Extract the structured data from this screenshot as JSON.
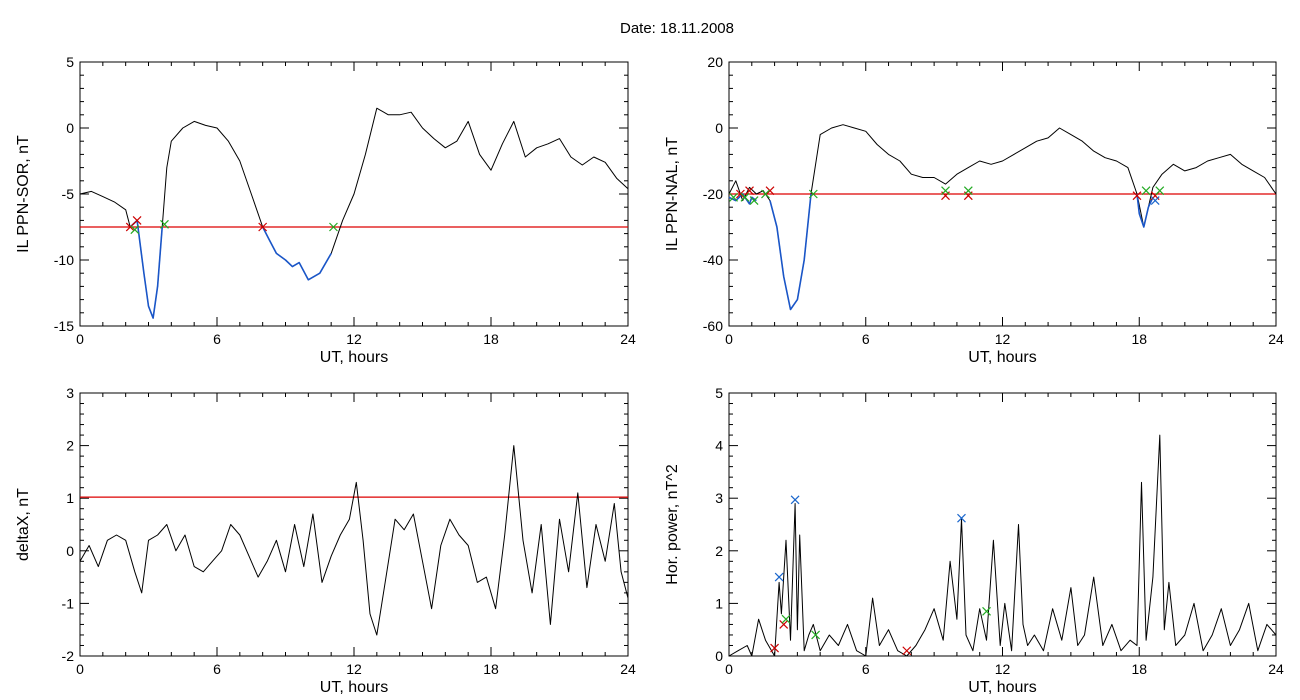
{
  "title": "Date:  18.11.2008",
  "colors": {
    "axis": "#000000",
    "signal": "#000000",
    "event": "#1a56c8",
    "threshold": "#dd0000",
    "marker_red": "#cc0000",
    "marker_green": "#22aa22",
    "marker_blue": "#1a66cc"
  },
  "chart_data": [
    {
      "type": "line",
      "xlabel": "UT, hours",
      "ylabel": "IL PPN-SOR, nT",
      "xlim": [
        0,
        24
      ],
      "ylim": [
        -15,
        5
      ],
      "xticks": [
        0,
        6,
        12,
        18,
        24
      ],
      "yticks": [
        5,
        0,
        -5,
        -10,
        -15
      ],
      "threshold": -7.5,
      "series": [
        {
          "role": "signal",
          "x": [
            0,
            0.5,
            1,
            1.5,
            2,
            2.2,
            2.5,
            2.8,
            3.0,
            3.2,
            3.4,
            3.6,
            3.8,
            4.0,
            4.5,
            5.0,
            5.5,
            6.0,
            6.5,
            7.0,
            7.5,
            8.0,
            8.3,
            8.6,
            9.0,
            9.3,
            9.6,
            10.0,
            10.5,
            11.0,
            11.5,
            12.0,
            12.5,
            13.0,
            13.5,
            14.0,
            14.5,
            15.0,
            15.5,
            16.0,
            16.5,
            17.0,
            17.5,
            18.0,
            18.5,
            19.0,
            19.5,
            20.0,
            20.5,
            21.0,
            21.5,
            22.0,
            22.5,
            23.0,
            23.5,
            24.0
          ],
          "y": [
            -5,
            -4.8,
            -5.2,
            -5.6,
            -6.2,
            -7.5,
            -7.0,
            -11,
            -13.5,
            -14.4,
            -12,
            -7.5,
            -3,
            -1,
            0,
            0.5,
            0.2,
            0,
            -1,
            -2.5,
            -5,
            -7.5,
            -8.5,
            -9.5,
            -10,
            -10.5,
            -10.2,
            -11.5,
            -11,
            -9.5,
            -7,
            -5,
            -2,
            1.5,
            1,
            1,
            1.2,
            0,
            -0.8,
            -1.5,
            -1,
            0.5,
            -2,
            -3.2,
            -1.2,
            0.5,
            -2.2,
            -1.5,
            -1.2,
            -0.8,
            -2.2,
            -2.8,
            -2.2,
            -2.6,
            -3.8,
            -4.6
          ]
        },
        {
          "role": "event",
          "x": [
            2.2,
            2.5,
            2.8,
            3.0,
            3.2,
            3.4,
            3.6
          ],
          "y": [
            -7.5,
            -7.0,
            -11,
            -13.5,
            -14.4,
            -12,
            -7.5
          ]
        },
        {
          "role": "event",
          "x": [
            8.0,
            8.3,
            8.6,
            9.0,
            9.3,
            9.6,
            10.0,
            10.5,
            11.0
          ],
          "y": [
            -7.5,
            -8.5,
            -9.5,
            -10,
            -10.5,
            -10.2,
            -11.5,
            -11,
            -9.5
          ]
        }
      ],
      "markers": [
        {
          "color": "red",
          "x": 2.2,
          "y": -7.5
        },
        {
          "color": "red",
          "x": 2.5,
          "y": -7.0
        },
        {
          "color": "red",
          "x": 8.0,
          "y": -7.5
        },
        {
          "color": "green",
          "x": 2.4,
          "y": -7.7
        },
        {
          "color": "green",
          "x": 3.7,
          "y": -7.3
        },
        {
          "color": "green",
          "x": 11.1,
          "y": -7.5
        }
      ]
    },
    {
      "type": "line",
      "xlabel": "UT, hours",
      "ylabel": "IL PPN-NAL, nT",
      "xlim": [
        0,
        24
      ],
      "ylim": [
        -60,
        20
      ],
      "xticks": [
        0,
        6,
        12,
        18,
        24
      ],
      "yticks": [
        20,
        0,
        -20,
        -40,
        -60
      ],
      "threshold": -20,
      "series": [
        {
          "role": "signal",
          "x": [
            0,
            0.3,
            0.6,
            0.9,
            1.2,
            1.5,
            1.8,
            2.1,
            2.4,
            2.7,
            3.0,
            3.3,
            3.6,
            4.0,
            4.5,
            5.0,
            5.5,
            6.0,
            6.5,
            7.0,
            7.5,
            8.0,
            8.5,
            9.0,
            9.5,
            10.0,
            10.5,
            11.0,
            11.5,
            12.0,
            12.5,
            13.0,
            13.5,
            14.0,
            14.5,
            15.0,
            15.5,
            16.0,
            16.5,
            17.0,
            17.5,
            17.9,
            18.2,
            18.6,
            19.0,
            19.5,
            20.0,
            20.5,
            21.0,
            21.5,
            22.0,
            22.5,
            23.0,
            23.5,
            24.0
          ],
          "y": [
            -20,
            -16,
            -22,
            -18,
            -20,
            -19,
            -22,
            -30,
            -45,
            -55,
            -52,
            -40,
            -20,
            -2,
            0,
            1,
            0,
            -1,
            -5,
            -8,
            -10,
            -14,
            -15,
            -15,
            -17,
            -14,
            -12,
            -10,
            -11,
            -10,
            -8,
            -6,
            -4,
            -3,
            0,
            -2,
            -4,
            -7,
            -9,
            -10,
            -12,
            -20,
            -30,
            -18,
            -14,
            -11,
            -13,
            -12,
            -10,
            -9,
            -8,
            -11,
            -13,
            -15,
            -20
          ]
        },
        {
          "role": "event",
          "x": [
            0.0,
            0.3,
            0.6,
            0.9,
            1.0,
            1.2
          ],
          "y": [
            -21,
            -22,
            -20,
            -23,
            -21,
            -22
          ]
        },
        {
          "role": "event",
          "x": [
            1.8,
            2.1,
            2.4,
            2.7,
            3.0,
            3.3,
            3.6
          ],
          "y": [
            -22,
            -30,
            -45,
            -55,
            -52,
            -40,
            -20
          ]
        },
        {
          "role": "event",
          "x": [
            17.9,
            18.0,
            18.2,
            18.4,
            18.6
          ],
          "y": [
            -20,
            -26,
            -30,
            -24,
            -21
          ]
        }
      ],
      "markers": [
        {
          "color": "red",
          "x": 0.5,
          "y": -20
        },
        {
          "color": "red",
          "x": 0.9,
          "y": -19
        },
        {
          "color": "red",
          "x": 1.8,
          "y": -19
        },
        {
          "color": "red",
          "x": 9.5,
          "y": -20.5
        },
        {
          "color": "red",
          "x": 10.5,
          "y": -20.5
        },
        {
          "color": "red",
          "x": 17.9,
          "y": -20.5
        },
        {
          "color": "red",
          "x": 18.7,
          "y": -20.5
        },
        {
          "color": "green",
          "x": 0.2,
          "y": -21
        },
        {
          "color": "green",
          "x": 0.7,
          "y": -21
        },
        {
          "color": "green",
          "x": 1.1,
          "y": -22
        },
        {
          "color": "green",
          "x": 1.6,
          "y": -20
        },
        {
          "color": "green",
          "x": 3.7,
          "y": -20
        },
        {
          "color": "green",
          "x": 9.5,
          "y": -19
        },
        {
          "color": "green",
          "x": 10.5,
          "y": -19
        },
        {
          "color": "green",
          "x": 18.3,
          "y": -19
        },
        {
          "color": "green",
          "x": 18.9,
          "y": -19
        },
        {
          "color": "blue",
          "x": 18.7,
          "y": -22
        }
      ]
    },
    {
      "type": "line",
      "xlabel": "UT, hours",
      "ylabel": "deltaX, nT",
      "xlim": [
        0,
        24
      ],
      "ylim": [
        -2,
        3
      ],
      "xticks": [
        0,
        6,
        12,
        18,
        24
      ],
      "yticks": [
        3,
        2,
        1,
        0,
        -1,
        -2
      ],
      "threshold": 1.02,
      "series": [
        {
          "role": "signal",
          "x": [
            0,
            0.4,
            0.8,
            1.2,
            1.6,
            2.0,
            2.4,
            2.7,
            3.0,
            3.4,
            3.8,
            4.2,
            4.6,
            5.0,
            5.4,
            5.8,
            6.2,
            6.6,
            7.0,
            7.4,
            7.8,
            8.2,
            8.6,
            9.0,
            9.4,
            9.8,
            10.2,
            10.6,
            11.0,
            11.4,
            11.8,
            12.1,
            12.4,
            12.7,
            13.0,
            13.4,
            13.8,
            14.2,
            14.6,
            15.0,
            15.4,
            15.8,
            16.2,
            16.6,
            17.0,
            17.4,
            17.8,
            18.2,
            18.6,
            19.0,
            19.4,
            19.8,
            20.2,
            20.6,
            21.0,
            21.4,
            21.8,
            22.2,
            22.6,
            23.0,
            23.4,
            23.7,
            24.0
          ],
          "y": [
            -0.2,
            0.1,
            -0.3,
            0.2,
            0.3,
            0.2,
            -0.4,
            -0.8,
            0.2,
            0.3,
            0.5,
            0.0,
            0.3,
            -0.3,
            -0.4,
            -0.2,
            0.0,
            0.5,
            0.3,
            -0.1,
            -0.5,
            -0.2,
            0.2,
            -0.4,
            0.5,
            -0.3,
            0.7,
            -0.6,
            -0.1,
            0.3,
            0.6,
            1.3,
            0.2,
            -1.2,
            -1.6,
            -0.5,
            0.6,
            0.4,
            0.7,
            -0.2,
            -1.1,
            0.1,
            0.6,
            0.3,
            0.1,
            -0.6,
            -0.5,
            -1.1,
            0.3,
            2.0,
            0.2,
            -0.8,
            0.5,
            -1.4,
            0.6,
            -0.4,
            1.1,
            -0.7,
            0.5,
            -0.2,
            0.9,
            -0.4,
            -0.9
          ]
        }
      ],
      "markers": []
    },
    {
      "type": "line",
      "xlabel": "UT, hours",
      "ylabel": "Hor. power, nT^2",
      "xlim": [
        0,
        24
      ],
      "ylim": [
        0,
        5
      ],
      "xticks": [
        0,
        6,
        12,
        18,
        24
      ],
      "yticks": [
        5,
        4,
        3,
        2,
        1,
        0
      ],
      "series": [
        {
          "role": "signal",
          "x": [
            0,
            0.4,
            0.8,
            1.0,
            1.3,
            1.6,
            2.0,
            2.2,
            2.3,
            2.5,
            2.7,
            2.9,
            3.0,
            3.1,
            3.3,
            3.5,
            3.7,
            4.0,
            4.4,
            4.8,
            5.2,
            5.6,
            6.0,
            6.3,
            6.6,
            7.0,
            7.4,
            7.8,
            8.2,
            8.6,
            9.0,
            9.4,
            9.7,
            10.0,
            10.2,
            10.4,
            10.7,
            11.0,
            11.3,
            11.6,
            11.9,
            12.1,
            12.4,
            12.7,
            12.9,
            13.1,
            13.4,
            13.8,
            14.2,
            14.6,
            15.0,
            15.3,
            15.6,
            16.0,
            16.4,
            16.8,
            17.2,
            17.6,
            17.9,
            18.1,
            18.3,
            18.6,
            18.9,
            19.1,
            19.3,
            19.6,
            20.0,
            20.4,
            20.8,
            21.2,
            21.6,
            22.0,
            22.4,
            22.8,
            23.2,
            23.6,
            24.0
          ],
          "y": [
            0.0,
            0.1,
            0.2,
            0.0,
            0.7,
            0.3,
            0.0,
            1.4,
            0.8,
            2.2,
            0.3,
            2.9,
            0.5,
            2.3,
            0.1,
            0.4,
            0.6,
            0.1,
            0.4,
            0.2,
            0.6,
            0.1,
            0.0,
            1.1,
            0.2,
            0.5,
            0.1,
            0.0,
            0.2,
            0.5,
            0.9,
            0.3,
            1.8,
            0.7,
            2.6,
            0.4,
            0.1,
            0.9,
            0.3,
            2.2,
            0.2,
            1.0,
            0.1,
            2.5,
            0.6,
            0.2,
            0.4,
            0.1,
            0.9,
            0.3,
            1.3,
            0.2,
            0.4,
            1.5,
            0.2,
            0.6,
            0.1,
            0.3,
            0.2,
            3.3,
            0.3,
            1.5,
            4.2,
            0.5,
            1.4,
            0.2,
            0.4,
            1.0,
            0.1,
            0.4,
            0.9,
            0.2,
            0.5,
            1.0,
            0.1,
            0.6,
            0.4
          ]
        }
      ],
      "markers": [
        {
          "color": "blue",
          "x": 2.2,
          "y": 1.5
        },
        {
          "color": "blue",
          "x": 2.9,
          "y": 2.97
        },
        {
          "color": "blue",
          "x": 10.2,
          "y": 2.62
        },
        {
          "color": "red",
          "x": 2.0,
          "y": 0.15
        },
        {
          "color": "red",
          "x": 2.4,
          "y": 0.6
        },
        {
          "color": "red",
          "x": 7.8,
          "y": 0.1
        },
        {
          "color": "green",
          "x": 2.5,
          "y": 0.7
        },
        {
          "color": "green",
          "x": 3.8,
          "y": 0.4
        },
        {
          "color": "green",
          "x": 11.3,
          "y": 0.85
        }
      ]
    }
  ]
}
